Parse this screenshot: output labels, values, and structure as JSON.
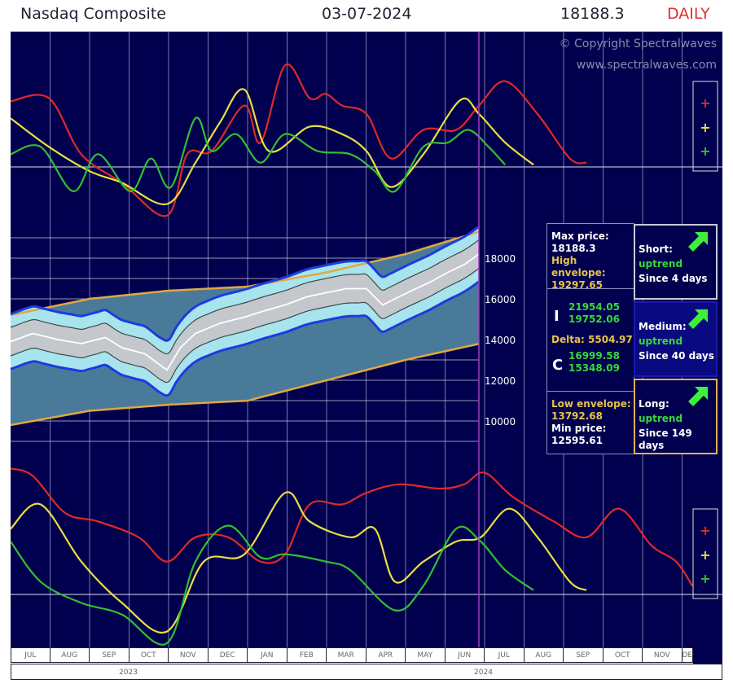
{
  "header": {
    "title": "Nasdaq Composite",
    "date": "03-07-2024",
    "price": "18188.3",
    "period": "DAILY"
  },
  "copyright": {
    "line1": "© Copyright Spectralwaves",
    "line2": "www.spectralwaves.com"
  },
  "colors": {
    "background": "#00004e",
    "red": "#e02828",
    "yellow": "#e8e040",
    "green": "#30c030",
    "envelope": "#e0a840",
    "blue_band": "#1a3ce0",
    "period_marker": "#a040c0"
  },
  "legend_icons": [
    "red-plus",
    "yellow-plus",
    "green-plus"
  ],
  "info": {
    "max_label": "Max price:",
    "max_value": "18188.3",
    "high_env_label": "High envelope:",
    "high_env_value": "19297.65",
    "i_label": "I",
    "i_values": [
      "21954.05",
      "19752.06"
    ],
    "delta": "Delta: 5504.97",
    "c_label": "C",
    "c_values": [
      "16999.58",
      "15348.09"
    ],
    "low_env_label": "Low envelope:",
    "low_env_value": "13792.68",
    "min_label": "Min price:",
    "min_value": "12595.61"
  },
  "trends": [
    {
      "label": "Short:",
      "status": "uptrend",
      "since": "Since 4 days"
    },
    {
      "label": "Medium:",
      "status": "uptrend",
      "since": "Since 40 days"
    },
    {
      "label": "Long:",
      "status": "uptrend",
      "since": "Since 149 days"
    }
  ],
  "chart_data": {
    "type": "line",
    "x_axis": {
      "months": [
        "JUL",
        "AUG",
        "SEP",
        "OCT",
        "NOV",
        "DEC",
        "JAN",
        "FEB",
        "MAR",
        "APR",
        "MAY",
        "JUN",
        "JUL",
        "AUG",
        "SEP",
        "OCT",
        "NOV",
        "DEC"
      ],
      "years": [
        "2023",
        "2024"
      ]
    },
    "price_panel": {
      "ylim": [
        9000,
        19500
      ],
      "ticks": [
        "18000",
        "16000",
        "14000",
        "12000",
        "10000"
      ],
      "tick_values": [
        18000,
        16000,
        14000,
        12000,
        10000
      ],
      "price": [
        [
          0,
          13900
        ],
        [
          0.56,
          14300
        ],
        [
          1.2,
          14000
        ],
        [
          1.79,
          13800
        ],
        [
          2.4,
          14100
        ],
        [
          2.82,
          13600
        ],
        [
          3.4,
          13300
        ],
        [
          3.96,
          12500
        ],
        [
          4.3,
          13600
        ],
        [
          4.68,
          14300
        ],
        [
          5.3,
          14800
        ],
        [
          5.92,
          15100
        ],
        [
          6.4,
          15400
        ],
        [
          6.95,
          15700
        ],
        [
          7.5,
          16100
        ],
        [
          7.98,
          16300
        ],
        [
          8.5,
          16500
        ],
        [
          9.01,
          16500
        ],
        [
          9.42,
          15700
        ],
        [
          10.04,
          16300
        ],
        [
          10.6,
          16800
        ],
        [
          11.07,
          17300
        ],
        [
          11.5,
          17700
        ],
        [
          11.86,
          18200
        ]
      ],
      "high_envelope": [
        [
          0,
          15200
        ],
        [
          2,
          16000
        ],
        [
          4,
          16400
        ],
        [
          6,
          16600
        ],
        [
          8,
          17300
        ],
        [
          10,
          18200
        ],
        [
          11.86,
          19300
        ]
      ],
      "low_envelope": [
        [
          0,
          9800
        ],
        [
          2,
          10500
        ],
        [
          4,
          10800
        ],
        [
          6,
          11000
        ],
        [
          8,
          12000
        ],
        [
          10,
          13000
        ],
        [
          11.86,
          13790
        ]
      ]
    },
    "oscillator_top": {
      "red": [
        [
          0,
          62
        ],
        [
          0.97,
          65
        ],
        [
          1.79,
          12
        ],
        [
          2.82,
          -15
        ],
        [
          3.96,
          -46
        ],
        [
          4.47,
          12
        ],
        [
          5.09,
          15
        ],
        [
          5.92,
          58
        ],
        [
          6.33,
          23
        ],
        [
          6.95,
          96
        ],
        [
          7.57,
          65
        ],
        [
          7.98,
          69
        ],
        [
          8.39,
          58
        ],
        [
          9.01,
          50
        ],
        [
          9.63,
          8
        ],
        [
          10.45,
          35
        ],
        [
          11.28,
          35
        ],
        [
          11.86,
          58
        ],
        [
          12.52,
          81
        ],
        [
          13.34,
          50
        ],
        [
          14.16,
          8
        ],
        [
          14.58,
          4
        ]
      ],
      "yellow": [
        [
          0,
          46
        ],
        [
          0.97,
          19
        ],
        [
          2,
          -4
        ],
        [
          2.82,
          -15
        ],
        [
          3.96,
          -35
        ],
        [
          4.68,
          4
        ],
        [
          5.3,
          42
        ],
        [
          5.92,
          73
        ],
        [
          6.54,
          15
        ],
        [
          7.57,
          38
        ],
        [
          8.39,
          31
        ],
        [
          9.01,
          15
        ],
        [
          9.63,
          -19
        ],
        [
          10.45,
          12
        ],
        [
          11.38,
          63
        ],
        [
          11.86,
          50
        ],
        [
          12.52,
          23
        ],
        [
          13.24,
          2
        ]
      ],
      "green": [
        [
          0,
          12
        ],
        [
          0.76,
          19
        ],
        [
          1.59,
          -23
        ],
        [
          2.21,
          12
        ],
        [
          3.03,
          -23
        ],
        [
          3.55,
          8
        ],
        [
          4.06,
          -19
        ],
        [
          4.68,
          46
        ],
        [
          5.09,
          15
        ],
        [
          5.71,
          31
        ],
        [
          6.33,
          4
        ],
        [
          6.95,
          31
        ],
        [
          7.77,
          15
        ],
        [
          8.6,
          12
        ],
        [
          9.22,
          -4
        ],
        [
          9.73,
          -23
        ],
        [
          10.45,
          19
        ],
        [
          11.07,
          23
        ],
        [
          11.59,
          35
        ],
        [
          12.1,
          19
        ],
        [
          12.52,
          2
        ]
      ]
    },
    "oscillator_bottom": {
      "red": [
        [
          0,
          119
        ],
        [
          0.56,
          112
        ],
        [
          1.38,
          77
        ],
        [
          2.21,
          69
        ],
        [
          3.24,
          54
        ],
        [
          3.96,
          31
        ],
        [
          4.68,
          54
        ],
        [
          5.51,
          54
        ],
        [
          6.33,
          31
        ],
        [
          6.95,
          38
        ],
        [
          7.57,
          85
        ],
        [
          8.39,
          85
        ],
        [
          9.01,
          96
        ],
        [
          9.84,
          104
        ],
        [
          10.87,
          100
        ],
        [
          11.48,
          104
        ],
        [
          12,
          115
        ],
        [
          12.72,
          92
        ],
        [
          13.75,
          69
        ],
        [
          14.58,
          54
        ],
        [
          15.4,
          81
        ],
        [
          16.23,
          46
        ],
        [
          16.85,
          31
        ],
        [
          17.26,
          8
        ]
      ],
      "yellow": [
        [
          0,
          62
        ],
        [
          0.76,
          85
        ],
        [
          1.79,
          31
        ],
        [
          2.82,
          -8
        ],
        [
          3.96,
          -35
        ],
        [
          4.89,
          31
        ],
        [
          5.92,
          38
        ],
        [
          6.95,
          96
        ],
        [
          7.57,
          69
        ],
        [
          8.6,
          54
        ],
        [
          9.22,
          62
        ],
        [
          9.73,
          12
        ],
        [
          10.45,
          31
        ],
        [
          11.28,
          50
        ],
        [
          11.9,
          54
        ],
        [
          12.62,
          81
        ],
        [
          13.34,
          54
        ],
        [
          14.16,
          12
        ],
        [
          14.58,
          4
        ]
      ],
      "green": [
        [
          0,
          50
        ],
        [
          0.76,
          12
        ],
        [
          1.79,
          -8
        ],
        [
          2.82,
          -19
        ],
        [
          3.96,
          -46
        ],
        [
          4.68,
          31
        ],
        [
          5.51,
          65
        ],
        [
          6.33,
          35
        ],
        [
          6.95,
          38
        ],
        [
          7.98,
          31
        ],
        [
          8.6,
          23
        ],
        [
          9.73,
          -15
        ],
        [
          10.45,
          8
        ],
        [
          11.28,
          62
        ],
        [
          11.9,
          50
        ],
        [
          12.52,
          23
        ],
        [
          13.24,
          4
        ]
      ]
    }
  }
}
